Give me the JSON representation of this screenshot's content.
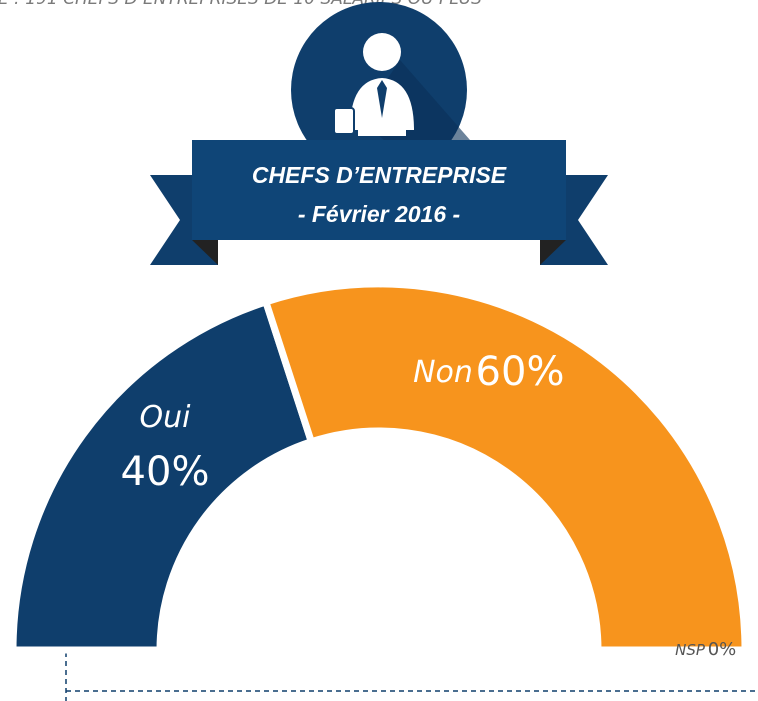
{
  "chart_data": {
    "type": "pie",
    "subtitle": "E : 191 CHEFS D’ENTREPRISES DE 10 SALARIÉS OU PLUS",
    "title": "CHEFS D’ENTREPRISE",
    "date_label": "- Février 2016 -",
    "categories": [
      "Oui",
      "Non",
      "NSP"
    ],
    "values": [
      40,
      60,
      0
    ],
    "value_labels": [
      "40%",
      "60%",
      "0%"
    ],
    "colors": [
      "#0f3e6c",
      "#f7941d",
      "#8a8a8a"
    ]
  }
}
